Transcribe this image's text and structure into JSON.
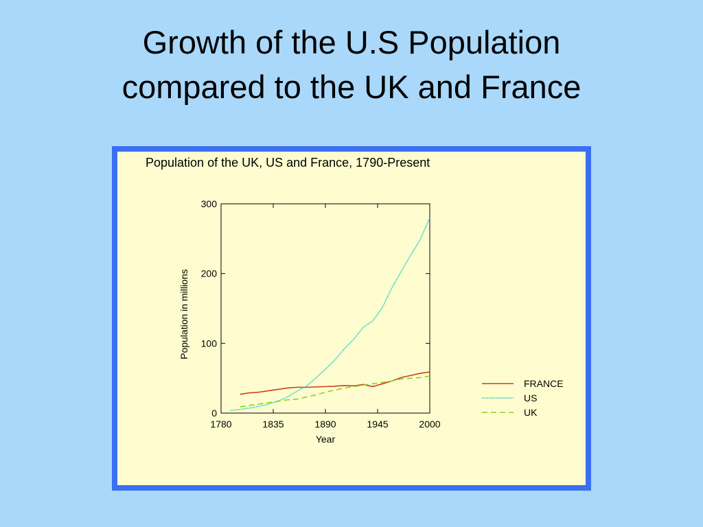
{
  "slide_title": [
    "Growth of the U.S Population",
    "compared to the UK and France"
  ],
  "chart_data": {
    "type": "line",
    "title": "Population of the UK, US and France, 1790-Present",
    "x_label": "Year",
    "y_label": "Population in millions",
    "x": [
      1790,
      1800,
      1810,
      1820,
      1830,
      1840,
      1850,
      1860,
      1870,
      1880,
      1890,
      1900,
      1910,
      1920,
      1930,
      1940,
      1950,
      1960,
      1970,
      1980,
      1990,
      2000
    ],
    "series": [
      {
        "name": "FRANCE",
        "color": "#d23a1e",
        "line_style": "solid",
        "values": [
          null,
          27,
          29,
          30,
          32,
          34,
          36,
          37,
          37,
          37.5,
          38,
          38.5,
          39.5,
          39,
          41,
          38,
          42,
          46,
          51,
          54,
          57,
          59
        ]
      },
      {
        "name": "US",
        "color": "#1fcfc0",
        "line_style": "dotted",
        "values": [
          3.9,
          5.3,
          7.2,
          9.6,
          12.9,
          17.1,
          23.2,
          31.4,
          38.6,
          50.2,
          62.9,
          76.2,
          92.2,
          106,
          123.2,
          132.2,
          151.3,
          179.3,
          203.3,
          226.5,
          248.7,
          280
        ]
      },
      {
        "name": "UK",
        "color": "#8ad21a",
        "line_style": "dashed",
        "values": [
          null,
          9,
          11,
          13,
          15,
          17,
          19,
          20,
          23,
          26,
          30,
          33,
          36,
          38,
          40,
          42,
          44,
          46,
          49,
          50,
          51,
          53
        ]
      }
    ],
    "xlim": [
      1780,
      2000
    ],
    "xticks": [
      1780,
      1835,
      1890,
      1945,
      2000
    ],
    "ylim": [
      0,
      300
    ],
    "yticks": [
      0,
      100,
      200,
      300
    ],
    "grid": false,
    "legend": "right"
  }
}
